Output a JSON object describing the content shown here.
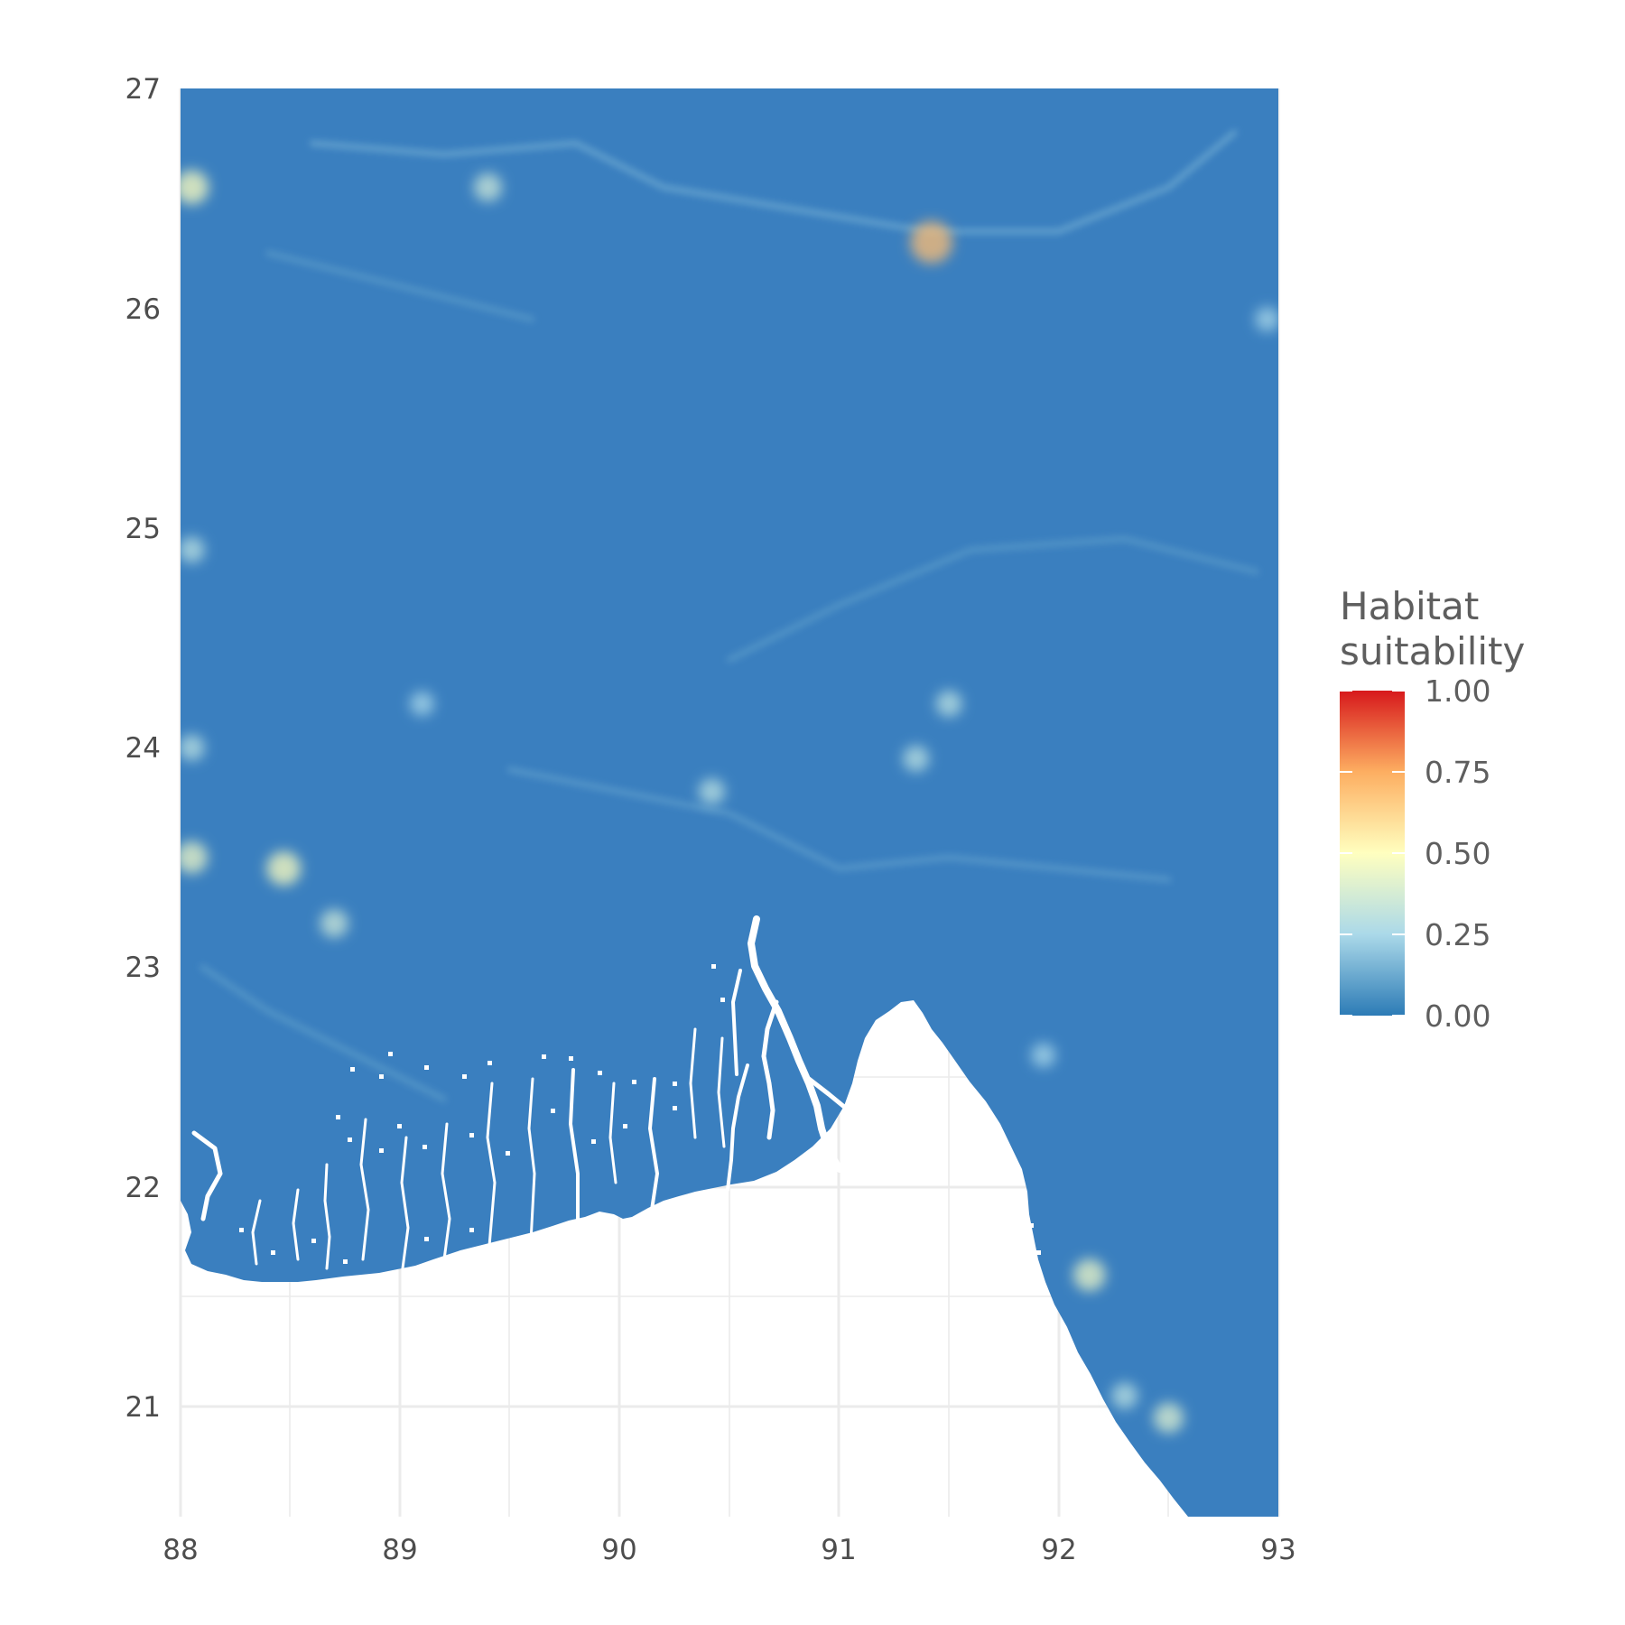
{
  "chart_data": {
    "type": "heatmap",
    "subtype": "raster map",
    "title": "",
    "xlabel": "",
    "ylabel": "",
    "xlim": [
      88,
      93
    ],
    "ylim": [
      20.5,
      27
    ],
    "x_ticks": [
      "88",
      "89",
      "90",
      "91",
      "92",
      "93"
    ],
    "y_ticks": [
      "21",
      "22",
      "23",
      "24",
      "25",
      "26",
      "27"
    ],
    "grid": true,
    "legend": {
      "title_line1": "Habitat",
      "title_line2": "suitability",
      "placement": "right",
      "ticks": [
        "1.00",
        "0.75",
        "0.50",
        "0.25",
        "0.00"
      ],
      "range": [
        0,
        1
      ],
      "palette": [
        "#2c7bb6",
        "#abd9e9",
        "#ffffbf",
        "#fdae61",
        "#d7191c"
      ]
    },
    "fill_colors": {
      "background_raster": "#3a7fbf",
      "no_data": "#ffffff",
      "grid_line": "#ebebeb"
    },
    "hotspots": [
      {
        "lon": 88.05,
        "lat": 26.55,
        "value": 0.5
      },
      {
        "lon": 89.4,
        "lat": 26.55,
        "value": 0.35
      },
      {
        "lon": 88.05,
        "lat": 24.9,
        "value": 0.3
      },
      {
        "lon": 88.05,
        "lat": 24.0,
        "value": 0.3
      },
      {
        "lon": 88.05,
        "lat": 23.5,
        "value": 0.45
      },
      {
        "lon": 88.47,
        "lat": 23.45,
        "value": 0.5
      },
      {
        "lon": 88.7,
        "lat": 23.2,
        "value": 0.35
      },
      {
        "lon": 89.1,
        "lat": 24.2,
        "value": 0.25
      },
      {
        "lon": 90.42,
        "lat": 23.8,
        "value": 0.3
      },
      {
        "lon": 91.35,
        "lat": 23.95,
        "value": 0.3
      },
      {
        "lon": 91.5,
        "lat": 24.2,
        "value": 0.3
      },
      {
        "lon": 91.42,
        "lat": 26.3,
        "value": 0.7
      },
      {
        "lon": 92.95,
        "lat": 25.95,
        "value": 0.25
      },
      {
        "lon": 92.14,
        "lat": 21.6,
        "value": 0.45
      },
      {
        "lon": 92.5,
        "lat": 20.95,
        "value": 0.4
      },
      {
        "lon": 92.3,
        "lat": 21.05,
        "value": 0.3
      },
      {
        "lon": 91.93,
        "lat": 22.6,
        "value": 0.25
      }
    ],
    "suitable_streaks": [
      {
        "points": [
          [
            88.6,
            26.75
          ],
          [
            89.2,
            26.7
          ],
          [
            89.8,
            26.75
          ],
          [
            90.2,
            26.55
          ],
          [
            90.8,
            26.45
          ],
          [
            91.4,
            26.35
          ],
          [
            92.0,
            26.35
          ],
          [
            92.5,
            26.55
          ],
          [
            92.8,
            26.8
          ]
        ],
        "value": 0.18
      },
      {
        "points": [
          [
            88.4,
            26.25
          ],
          [
            89.0,
            26.1
          ],
          [
            89.6,
            25.95
          ]
        ],
        "value": 0.12
      },
      {
        "points": [
          [
            90.5,
            24.4
          ],
          [
            91.0,
            24.65
          ],
          [
            91.6,
            24.9
          ],
          [
            92.3,
            24.95
          ],
          [
            92.9,
            24.8
          ]
        ],
        "value": 0.12
      },
      {
        "points": [
          [
            89.5,
            23.9
          ],
          [
            90.0,
            23.8
          ],
          [
            90.5,
            23.7
          ],
          [
            91.0,
            23.45
          ],
          [
            91.5,
            23.5
          ],
          [
            92.0,
            23.45
          ],
          [
            92.5,
            23.4
          ]
        ],
        "value": 0.13
      },
      {
        "points": [
          [
            88.1,
            23.0
          ],
          [
            88.4,
            22.8
          ],
          [
            88.8,
            22.6
          ],
          [
            89.2,
            22.4
          ]
        ],
        "value": 0.12
      }
    ]
  }
}
